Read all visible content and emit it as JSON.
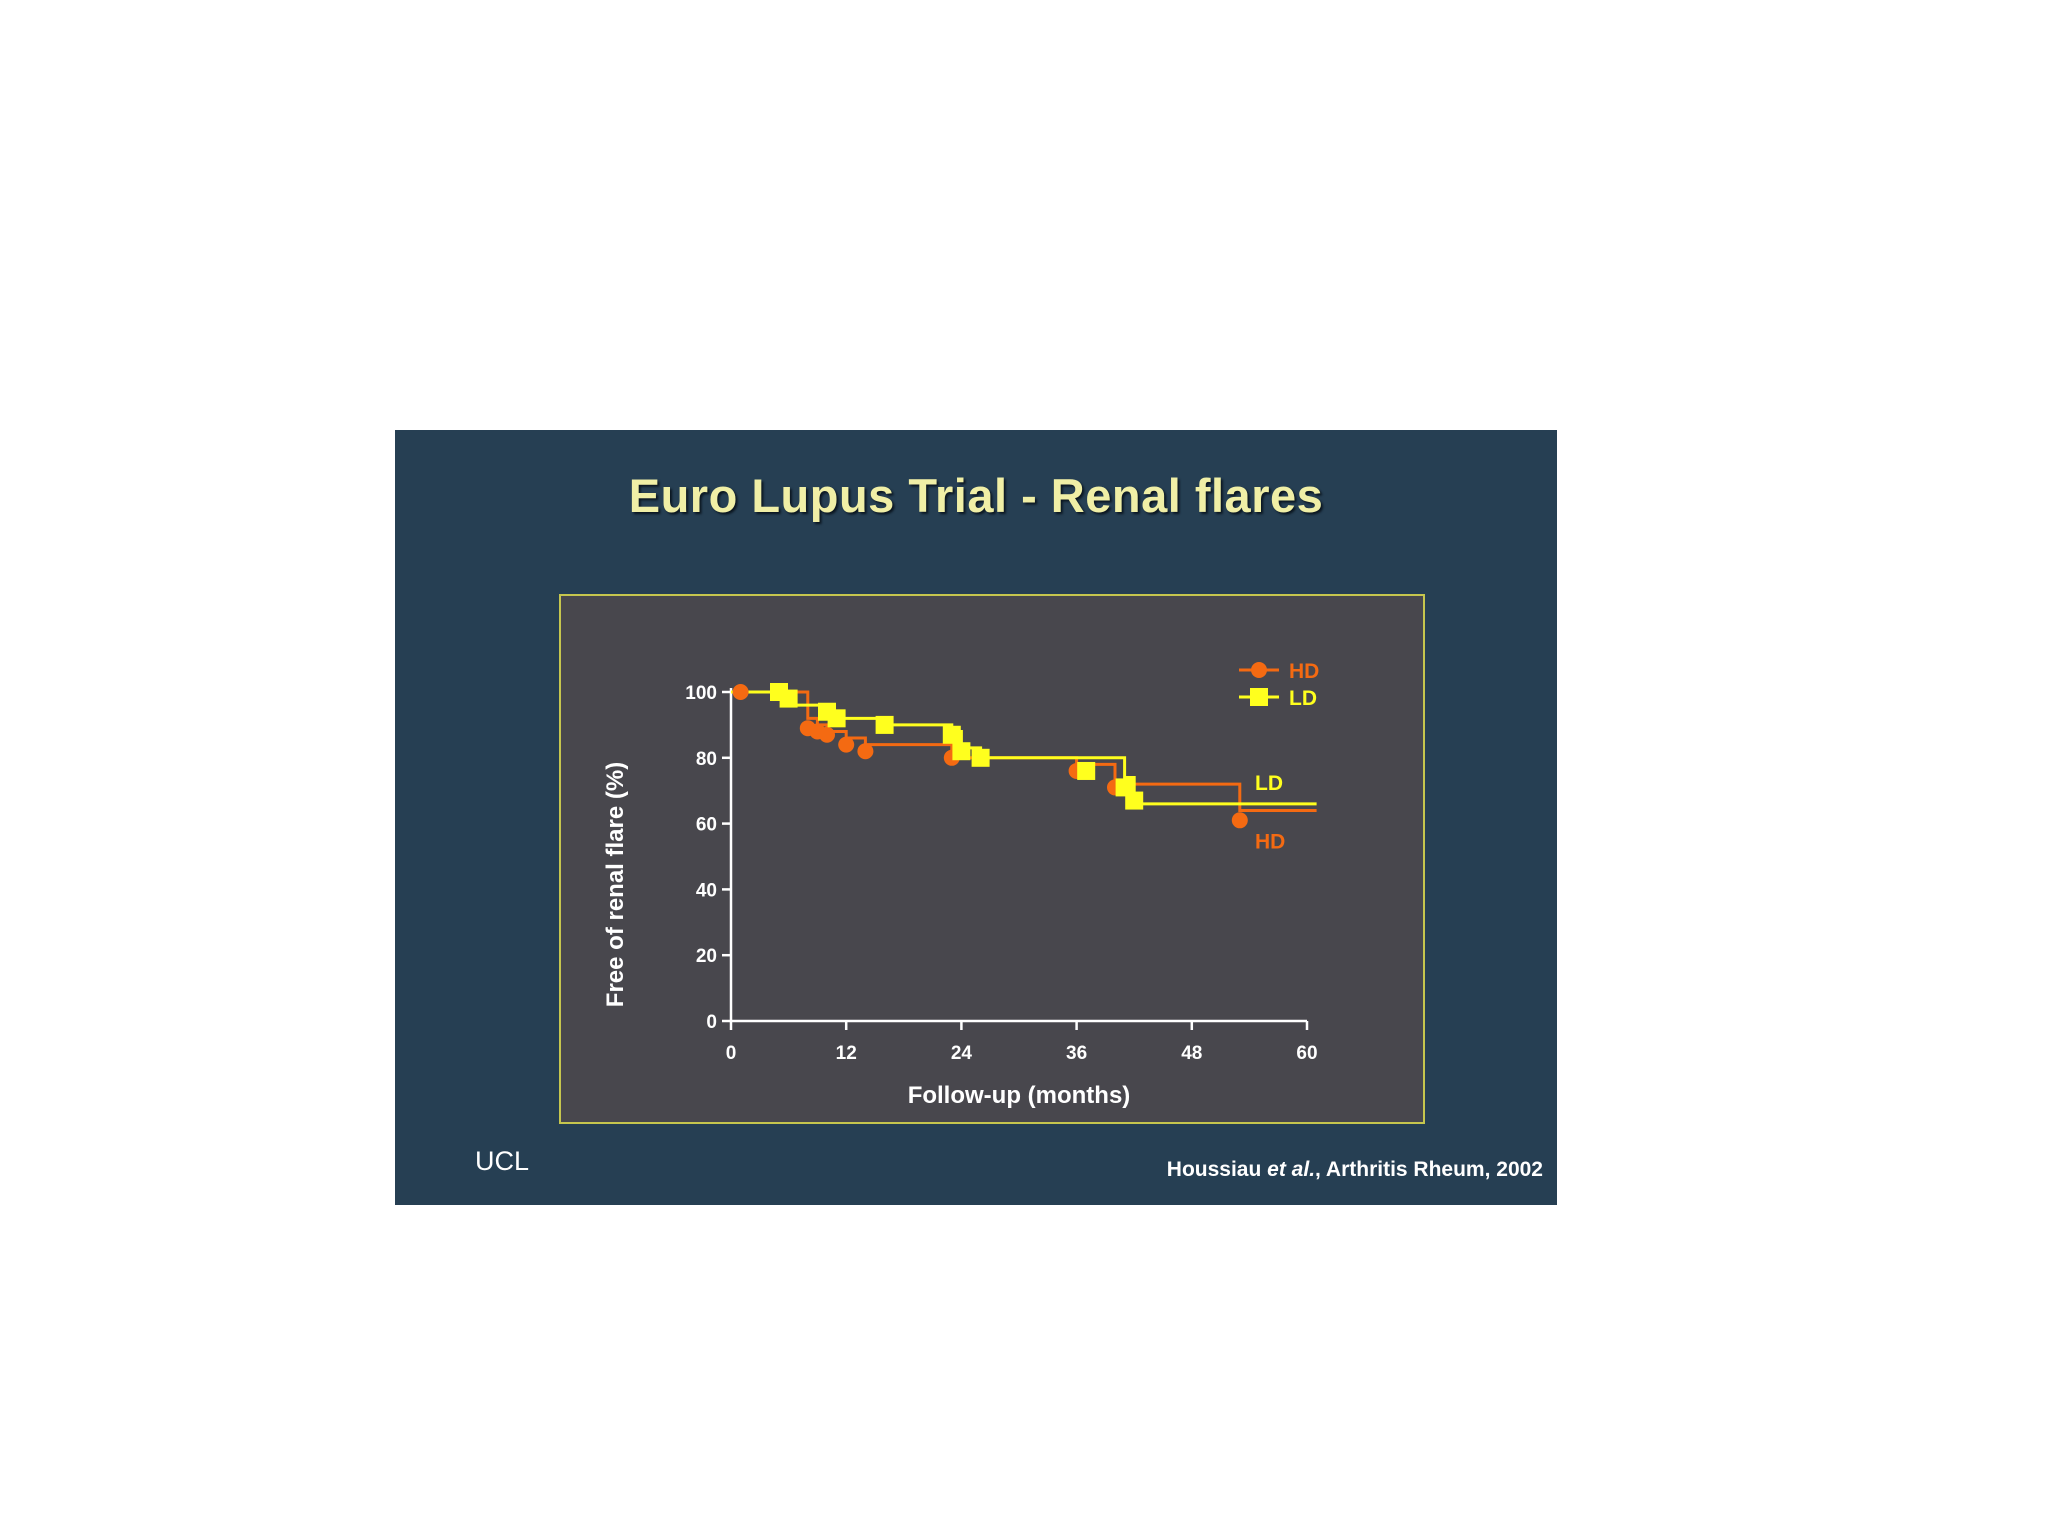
{
  "slide": {
    "title": "Euro Lupus Trial  - Renal flares",
    "brand": "UCL",
    "citation": {
      "authors": "Houssiau",
      "etal": "et al.",
      "rest": ", Arthritis Rheum, 2002"
    }
  },
  "colors": {
    "HD": "#f46a12",
    "LD": "#ffff1e",
    "axis": "#ffffff",
    "panel": "#48474d",
    "background": "#263f53"
  },
  "chart_data": {
    "type": "line",
    "step": true,
    "xlabel": "Follow-up (months)",
    "ylabel": "Free of renal flare (%)",
    "xlim": [
      0,
      60
    ],
    "ylim": [
      0,
      100
    ],
    "xticks": [
      0,
      12,
      24,
      36,
      48,
      60
    ],
    "yticks": [
      0,
      20,
      40,
      60,
      80,
      100
    ],
    "legend_position": "top-right",
    "series": [
      {
        "name": "HD",
        "color": "#f46a12",
        "marker": "circle",
        "end_label": "HD",
        "x": [
          0,
          8,
          9,
          10,
          12,
          14,
          23,
          36,
          40,
          53,
          61
        ],
        "y": [
          100,
          92,
          90,
          88,
          86,
          84,
          80,
          78,
          72,
          64,
          64
        ],
        "censored_x": [
          1,
          8,
          9,
          10,
          12,
          14,
          23,
          36,
          40,
          53
        ],
        "censored_y": [
          100,
          89,
          88,
          87,
          84,
          82,
          80,
          76,
          71,
          61
        ]
      },
      {
        "name": "LD",
        "color": "#ffff1e",
        "marker": "square",
        "end_label": "LD",
        "x": [
          0,
          5,
          6,
          10,
          11,
          16,
          23,
          24,
          26,
          37,
          41,
          42,
          61
        ],
        "y": [
          100,
          98,
          96,
          94,
          92,
          90,
          88,
          83,
          80,
          80,
          74,
          66,
          66
        ],
        "censored_x": [
          5,
          6,
          10,
          11,
          16,
          23,
          24,
          26,
          37,
          41,
          42
        ],
        "censored_y": [
          100,
          98,
          94,
          92,
          90,
          87,
          82,
          80,
          76,
          71,
          67
        ]
      }
    ]
  }
}
